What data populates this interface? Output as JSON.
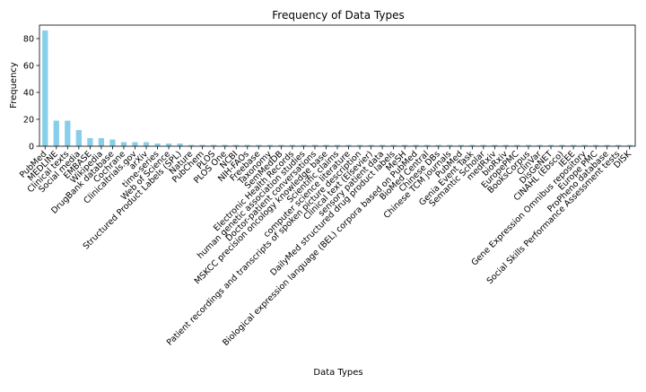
{
  "chart_data": {
    "type": "bar",
    "title": "Frequency of Data Types",
    "xlabel": "Data Types",
    "ylabel": "Frequency",
    "ylim": [
      0,
      90
    ],
    "yticks": [
      0,
      20,
      40,
      60,
      80
    ],
    "grid": false,
    "bar_color": "#87ceeb",
    "categories": [
      "PubMed",
      "MEDLINE",
      "Clinical texts",
      "Social media",
      "EMBASE",
      "Wikipedia",
      "DrugBank database",
      "Cochrane",
      "Clinicaltrials.gov",
      "arXiv",
      "time-series",
      "Web of Science",
      "Structured Product Labels (SPL)",
      "Nature",
      "PubChem",
      "PLOS",
      "PLOS One",
      "NCBI",
      "NIH-FAOs",
      "Freebase",
      "Taxonomy",
      "SemMedDB",
      "Electronic Health Records",
      "human genetic association studies",
      "Doctor-patient conversations",
      "MSKCC precision oncology knowledge base",
      "Scientific claims",
      "computer science literature",
      "Patient recordings and transcripts of spoken picture description",
      "Clinical text (Elsevier)",
      "sensory patient data",
      "DailyMed structured drug product labels",
      "MeSH",
      "Biological expression language (BEL) corpora based on PubMed",
      "BioMed Central",
      "Chinese DBs",
      "Chinese TCM journals",
      "PubMed",
      "Genia Event Task",
      "Semantic Scholar",
      "medRxiv",
      "bioRxiv",
      "EuropePMC",
      "BooksCorpus",
      "ClinVar",
      "DisGeNET",
      "CINAHL (Ebsco)",
      "IEEE",
      "Gene Expression Omnibus repository",
      "Europe PMC",
      "ProPheno database",
      "Social Skills Performance Assessment tests",
      "DISK"
    ],
    "values": [
      86,
      19,
      19,
      12,
      6,
      6,
      5,
      3,
      3,
      3,
      2,
      2,
      2,
      1,
      1,
      1,
      1,
      1,
      1,
      1,
      1,
      1,
      1,
      1,
      1,
      1,
      1,
      1,
      1,
      1,
      1,
      1,
      1,
      1,
      1,
      1,
      1,
      1,
      1,
      1,
      1,
      1,
      1,
      1,
      1,
      1,
      1,
      1,
      1,
      1,
      1,
      1,
      1
    ]
  }
}
